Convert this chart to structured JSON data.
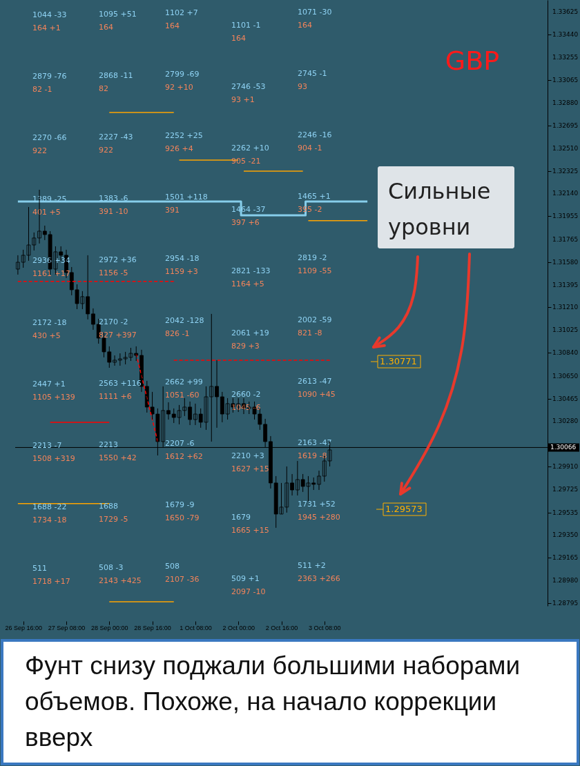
{
  "chart_data": {
    "type": "candlestick",
    "title": "GBP",
    "categories": [
      null,
      "26 Sep 16:00",
      null,
      null,
      null,
      null,
      null,
      null,
      null,
      "27 Sep 08:00",
      null,
      null,
      null,
      null,
      null,
      null,
      null,
      "28 Sep 00:00",
      null,
      null,
      null,
      null,
      null,
      null,
      null,
      "28 Sep 16:00",
      null,
      null,
      null,
      null,
      null,
      null,
      null,
      "1 Oct 08:00",
      null,
      null,
      null,
      null,
      null,
      null,
      null,
      "2 Oct 00:00",
      null,
      null,
      null,
      null,
      null,
      null,
      null,
      "2 Oct 16:00",
      null,
      null,
      null,
      null,
      null,
      null,
      null,
      "3 Oct 08:00",
      null,
      null,
      null,
      null,
      null,
      null,
      null,
      null,
      null,
      null,
      null,
      null,
      null,
      null,
      null,
      null,
      null,
      null,
      null,
      null,
      null,
      null,
      null,
      null,
      null,
      null,
      null,
      null,
      null,
      null,
      null,
      null,
      null,
      null,
      null,
      null,
      null,
      null,
      null,
      null,
      null
    ],
    "ylim": [
      1.28772,
      1.33721
    ],
    "yticks": [
      1.33625,
      {
        "value": 1.3344,
        "label": "1.33440"
      },
      1.33255,
      1.33065,
      {
        "value": 1.3288,
        "label": "1.32880"
      },
      1.32695,
      {
        "value": 1.3251,
        "label": "1.32510"
      },
      1.32325,
      {
        "value": 1.3214,
        "label": "1.32140"
      },
      1.31955,
      1.31765,
      {
        "value": 1.3158,
        "label": "1.31580"
      },
      1.31395,
      {
        "value": 1.3121,
        "label": "1.31210"
      },
      1.31025,
      {
        "value": 1.3084,
        "label": "1.30840"
      },
      {
        "value": 1.3065,
        "label": "1.30650"
      },
      1.30465,
      {
        "value": 1.3028,
        "label": "1.30280"
      },
      {
        "value": 1.2991,
        "label": "1.29910"
      },
      1.29725,
      1.29535,
      {
        "value": 1.2935,
        "label": "1.29350"
      },
      1.29165,
      {
        "value": 1.2898,
        "label": "1.28980"
      },
      1.28795
    ],
    "grid": false,
    "ohlc": [
      [
        1.31523,
        1.31636,
        1.31478,
        1.31579
      ],
      [
        1.31579,
        1.31681,
        1.31534,
        1.31636
      ],
      [
        1.31636,
        1.3203,
        1.31591,
        1.3172
      ],
      [
        1.3172,
        1.31822,
        1.31675,
        1.31777
      ],
      [
        1.31777,
        1.32171,
        1.31732,
        1.31833
      ],
      [
        1.31833,
        1.31878,
        1.3176,
        1.31805
      ],
      [
        1.31805,
        1.31833,
        1.31478,
        1.31523
      ],
      [
        1.31523,
        1.31709,
        1.31478,
        1.31664
      ],
      [
        1.31664,
        1.31709,
        1.31591,
        1.31636
      ],
      [
        1.31636,
        1.31681,
        1.3145,
        1.31495
      ],
      [
        1.31495,
        1.3154,
        1.31309,
        1.31354
      ],
      [
        1.31354,
        1.31399,
        1.31196,
        1.31241
      ],
      [
        1.31241,
        1.31343,
        1.31196,
        1.31298
      ],
      [
        1.31298,
        1.31636,
        1.31112,
        1.31157
      ],
      [
        1.31157,
        1.31202,
        1.31027,
        1.31072
      ],
      [
        1.31072,
        1.31117,
        1.30914,
        1.30959
      ],
      [
        1.30959,
        1.31004,
        1.30802,
        1.30847
      ],
      [
        1.30847,
        1.30892,
        1.30717,
        1.30762
      ],
      [
        1.30762,
        1.30818,
        1.30734,
        1.30779
      ],
      [
        1.30779,
        1.30835,
        1.30734,
        1.3079
      ],
      [
        1.3079,
        1.30847,
        1.30745,
        1.30802
      ],
      [
        1.30802,
        1.3088,
        1.30773,
        1.30835
      ],
      [
        1.30835,
        1.30892,
        1.30773,
        1.30818
      ],
      [
        1.30818,
        1.30864,
        1.3052,
        1.30565
      ],
      [
        1.30565,
        1.3061,
        1.30351,
        1.30396
      ],
      [
        1.30396,
        1.3052,
        1.30294,
        1.30339
      ],
      [
        1.30339,
        1.30385,
        1.30001,
        1.30114
      ],
      [
        1.30114,
        1.30565,
        1.30069,
        1.30368
      ],
      [
        1.30368,
        1.30435,
        1.30294,
        1.30339
      ],
      [
        1.30339,
        1.30385,
        1.30266,
        1.30311
      ],
      [
        1.30311,
        1.30413,
        1.30255,
        1.30368
      ],
      [
        1.30368,
        1.30469,
        1.30323,
        1.30396
      ],
      [
        1.30396,
        1.30441,
        1.30249,
        1.30294
      ],
      [
        1.30294,
        1.30424,
        1.30249,
        1.30339
      ],
      [
        1.30339,
        1.30385,
        1.30227,
        1.30272
      ],
      [
        1.30272,
        1.30565,
        1.3021,
        1.3048
      ],
      [
        1.3048,
        1.31157,
        1.30114,
        1.30565
      ],
      [
        1.30565,
        1.30779,
        1.30227,
        1.3048
      ],
      [
        1.3048,
        1.3052,
        1.30272,
        1.30339
      ],
      [
        1.30339,
        1.30469,
        1.30294,
        1.30424
      ],
      [
        1.30424,
        1.30469,
        1.30351,
        1.30396
      ],
      [
        1.30396,
        1.30469,
        1.30356,
        1.30424
      ],
      [
        1.30424,
        1.30469,
        1.30339,
        1.30385
      ],
      [
        1.30385,
        1.30441,
        1.30339,
        1.30396
      ],
      [
        1.30396,
        1.30441,
        1.30294,
        1.30339
      ],
      [
        1.30339,
        1.30385,
        1.3021,
        1.30255
      ],
      [
        1.30255,
        1.303,
        1.30069,
        1.30114
      ],
      [
        1.30114,
        1.30159,
        1.29731,
        1.29776
      ],
      [
        1.29776,
        1.29832,
        1.2941,
        1.29522
      ],
      [
        1.29522,
        1.29776,
        1.29522,
        1.29579
      ],
      [
        1.29579,
        1.29911,
        1.29534,
        1.29776
      ],
      [
        1.29776,
        1.29849,
        1.29674,
        1.29719
      ],
      [
        1.29719,
        1.29956,
        1.29674,
        1.29804
      ],
      [
        1.29804,
        1.29849,
        1.29703,
        1.29748
      ],
      [
        1.29748,
        1.29832,
        1.29624,
        1.29776
      ],
      [
        1.29776,
        1.29821,
        1.29719,
        1.29765
      ],
      [
        1.29765,
        1.29877,
        1.29719,
        1.29832
      ],
      [
        1.29832,
        1.30001,
        1.29787,
        1.29956
      ],
      [
        1.29956,
        1.30114,
        1.29911,
        1.30046
      ],
      null,
      null,
      null,
      null,
      null,
      null,
      null,
      null,
      null,
      null,
      null,
      null,
      null,
      null,
      null,
      null,
      null,
      null,
      null,
      null,
      null,
      null,
      null,
      null,
      null,
      null,
      null,
      null,
      null,
      null,
      null,
      null,
      null,
      null,
      null,
      null,
      null,
      null,
      null,
      null
    ],
    "series": [
      {
        "type": "step",
        "color": "#87ceeb",
        "values": [
          1.32075,
          1.32075,
          1.32075,
          1.32075,
          1.32075,
          1.32075,
          1.32075,
          1.32075,
          1.32075,
          1.32075,
          1.32075,
          1.32075,
          1.32075,
          1.32075,
          1.32075,
          1.32075,
          1.32075,
          1.32075,
          1.32075,
          1.32075,
          1.32075,
          1.32075,
          1.32075,
          1.32075,
          1.32075,
          1.32075,
          1.32075,
          1.32075,
          1.32075,
          1.32075,
          1.32075,
          1.32075,
          1.32075,
          1.32075,
          1.32075,
          1.32075,
          1.32075,
          1.32075,
          1.32075,
          1.32075,
          1.32075,
          1.32075,
          1.31963,
          1.31963,
          1.31963,
          1.31963,
          1.31963,
          1.31963,
          1.31963,
          1.31963,
          1.31963,
          1.31963,
          1.31963,
          1.31963,
          1.32075,
          1.32075,
          1.32075,
          1.32075,
          1.32075,
          1.32075,
          1.32075,
          1.32075,
          1.32075,
          1.32075,
          1.32075,
          1.32075,
          null,
          null,
          null,
          null,
          null,
          null,
          null,
          null,
          null,
          null,
          null,
          null,
          null,
          null,
          null,
          null,
          null,
          null,
          null,
          null,
          null,
          null,
          null,
          null,
          null,
          null,
          null,
          null,
          null,
          null,
          null,
          null,
          null
        ]
      },
      {
        "type": "line",
        "color": "#ff0000",
        "line_style": "dashed",
        "values": [
          1.31422,
          1.31422,
          1.31422,
          1.31422,
          1.31422,
          1.31422,
          1.31422,
          1.31422,
          1.31422,
          1.31422,
          1.31422,
          1.31422,
          1.31422,
          1.31422,
          1.31422,
          1.31422,
          1.31422,
          1.31422,
          1.31422,
          1.31422,
          1.31422,
          1.31422,
          1.31422,
          1.31422,
          1.31422,
          1.31422,
          1.31422,
          1.31422,
          1.31422,
          1.31422,
          null,
          null,
          null,
          null,
          null,
          null,
          null,
          null,
          null,
          null,
          null,
          null,
          null,
          null,
          null,
          null,
          null,
          null,
          null,
          null,
          null,
          null,
          null,
          null,
          null,
          null,
          null,
          null,
          null,
          null,
          null,
          null,
          null,
          null,
          null,
          null,
          null,
          null,
          null,
          null,
          null,
          null,
          null,
          null,
          null,
          null,
          null,
          null,
          null,
          null,
          null,
          null,
          null,
          null,
          null,
          null,
          null,
          null,
          null,
          null,
          null,
          null,
          null,
          null,
          null,
          null,
          null,
          null,
          null
        ]
      },
      {
        "type": "line",
        "color": "#ff0000",
        "line_style": "dashed",
        "values": [
          null,
          null,
          null,
          null,
          null,
          null,
          null,
          null,
          null,
          null,
          null,
          null,
          null,
          null,
          null,
          null,
          null,
          null,
          null,
          null,
          null,
          null,
          null,
          null,
          null,
          null,
          null,
          null,
          null,
          1.30779,
          1.30779,
          1.30779,
          1.30779,
          1.30779,
          1.30779,
          1.30779,
          1.30779,
          1.30779,
          1.30779,
          1.30779,
          1.30779,
          1.30779,
          1.30779,
          1.30779,
          1.30779,
          1.30779,
          1.30779,
          1.30779,
          1.30779,
          1.30779,
          1.30779,
          1.30779,
          1.30779,
          1.30779,
          1.30779,
          1.30779,
          1.30779,
          1.30779,
          1.30779,
          null,
          null,
          null,
          null,
          null,
          null,
          null,
          null,
          null,
          null,
          null,
          null,
          null,
          null,
          null,
          null,
          null,
          null,
          null,
          null,
          null,
          null,
          null,
          null,
          null,
          null,
          null,
          null,
          null,
          null,
          null,
          null,
          null,
          null,
          null,
          null,
          null,
          null,
          null,
          null
        ]
      },
      {
        "type": "line",
        "color": "#ff0000",
        "line_style": "dashed",
        "values": [
          null,
          null,
          null,
          null,
          null,
          null,
          null,
          null,
          null,
          null,
          null,
          null,
          null,
          null,
          null,
          null,
          null,
          null,
          null,
          null,
          null,
          null,
          1.3083,
          1.30651,
          1.30472,
          1.30293,
          1.30114,
          null,
          null,
          null,
          null,
          null,
          null,
          null,
          null,
          null,
          null,
          null,
          null,
          null,
          null,
          null,
          null,
          null,
          null,
          null,
          null,
          null,
          null,
          null,
          null,
          null,
          null,
          null,
          null,
          null,
          null,
          null,
          null,
          null,
          null,
          null,
          null,
          null,
          null,
          null,
          null,
          null,
          null,
          null,
          null,
          null,
          null,
          null,
          null,
          null,
          null,
          null,
          null,
          null,
          null,
          null,
          null,
          null,
          null,
          null,
          null,
          null,
          null,
          null,
          null,
          null,
          null,
          null,
          null,
          null,
          null,
          null,
          null
        ]
      },
      {
        "type": "line",
        "color": "#ffa500",
        "values": [
          null,
          null,
          null,
          null,
          null,
          null,
          null,
          null,
          null,
          null,
          null,
          null,
          null,
          null,
          null,
          null,
          null,
          1.32802,
          1.32802,
          1.32802,
          1.32802,
          1.32802,
          1.32802,
          1.32802,
          1.32802,
          1.32802,
          1.32802,
          1.32802,
          1.32802,
          1.32802,
          null,
          null,
          null,
          null,
          null,
          null,
          null,
          null,
          null,
          null,
          null,
          null,
          null,
          null,
          null,
          null,
          null,
          null,
          null,
          null,
          null,
          null,
          null,
          null,
          null,
          null,
          null,
          null,
          null,
          null,
          null,
          null,
          null,
          null,
          null,
          null,
          null,
          null,
          null,
          null,
          null,
          null,
          null,
          null,
          null,
          null,
          null,
          null,
          null,
          null,
          null,
          null,
          null,
          null,
          null,
          null,
          null,
          null,
          null,
          null,
          null,
          null,
          null,
          null,
          null,
          null,
          null,
          null,
          null
        ]
      },
      {
        "type": "line",
        "color": "#ffa500",
        "values": [
          null,
          null,
          null,
          null,
          null,
          null,
          null,
          null,
          null,
          null,
          null,
          null,
          null,
          null,
          null,
          null,
          null,
          null,
          null,
          null,
          null,
          null,
          null,
          null,
          null,
          null,
          null,
          null,
          null,
          null,
          1.32413,
          1.32413,
          1.32413,
          1.32413,
          1.32413,
          1.32413,
          1.32413,
          1.32413,
          1.32413,
          1.32413,
          1.32413,
          1.32413,
          null,
          null,
          null,
          null,
          null,
          null,
          null,
          null,
          null,
          null,
          null,
          null,
          null,
          null,
          null,
          null,
          null,
          null,
          null,
          null,
          null,
          null,
          null,
          null,
          null,
          null,
          null,
          null,
          null,
          null,
          null,
          null,
          null,
          null,
          null,
          null,
          null,
          null,
          null,
          null,
          null,
          null,
          null,
          null,
          null,
          null,
          null,
          null,
          null,
          null,
          null,
          null,
          null,
          null,
          null,
          null,
          null
        ]
      },
      {
        "type": "line",
        "color": "#ffa500",
        "values": [
          null,
          null,
          null,
          null,
          null,
          null,
          null,
          null,
          null,
          null,
          null,
          null,
          null,
          null,
          null,
          null,
          null,
          null,
          null,
          null,
          null,
          null,
          null,
          null,
          null,
          null,
          null,
          null,
          null,
          null,
          null,
          null,
          null,
          null,
          null,
          null,
          null,
          null,
          null,
          null,
          null,
          null,
          1.32323,
          1.32323,
          1.32323,
          1.32323,
          1.32323,
          1.32323,
          1.32323,
          1.32323,
          1.32323,
          1.32323,
          1.32323,
          1.32323,
          null,
          null,
          null,
          null,
          null,
          null,
          null,
          null,
          null,
          null,
          null,
          null,
          null,
          null,
          null,
          null,
          null,
          null,
          null,
          null,
          null,
          null,
          null,
          null,
          null,
          null,
          null,
          null,
          null,
          null,
          null,
          null,
          null,
          null,
          null,
          null,
          null,
          null,
          null,
          null,
          null,
          null,
          null,
          null,
          null
        ]
      },
      {
        "type": "line",
        "color": "#ffa500",
        "values": [
          null,
          null,
          null,
          null,
          null,
          null,
          null,
          null,
          null,
          null,
          null,
          null,
          null,
          null,
          null,
          null,
          null,
          null,
          null,
          null,
          null,
          null,
          null,
          null,
          null,
          null,
          null,
          null,
          null,
          null,
          null,
          null,
          null,
          null,
          null,
          null,
          null,
          null,
          null,
          null,
          null,
          null,
          null,
          null,
          null,
          null,
          null,
          null,
          null,
          null,
          null,
          null,
          null,
          null,
          1.31918,
          1.31918,
          1.31918,
          1.31918,
          1.31918,
          1.31918,
          1.31918,
          1.31918,
          1.31918,
          1.31918,
          1.31918,
          1.31918,
          null,
          null,
          null,
          null,
          null,
          null,
          null,
          null,
          null,
          null,
          null,
          null,
          null,
          null,
          null,
          null,
          null,
          null,
          null,
          null,
          null,
          null,
          null,
          null,
          null,
          null,
          null,
          null,
          null,
          null,
          null,
          null,
          null
        ]
      },
      {
        "type": "line",
        "color": "#ffa500",
        "values": [
          1.29607,
          1.29607,
          1.29607,
          1.29607,
          1.29607,
          1.29607,
          1.29607,
          1.29607,
          1.29607,
          1.29607,
          1.29607,
          1.29607,
          1.29607,
          1.29607,
          1.29607,
          1.29607,
          1.29607,
          1.29607,
          null,
          null,
          null,
          null,
          null,
          null,
          null,
          null,
          null,
          null,
          null,
          null,
          null,
          null,
          null,
          null,
          null,
          null,
          null,
          null,
          null,
          null,
          null,
          null,
          null,
          null,
          null,
          null,
          null,
          null,
          null,
          null,
          null,
          null,
          null,
          null,
          null,
          null,
          null,
          null,
          null,
          null,
          null,
          null,
          null,
          null,
          null,
          null,
          null,
          null,
          null,
          null,
          null,
          null,
          null,
          null,
          null,
          null,
          null,
          null,
          null,
          null,
          null,
          null,
          null,
          null,
          null,
          null,
          null,
          null,
          null,
          null,
          null,
          null,
          null,
          null,
          null,
          null,
          null,
          null,
          null
        ]
      },
      {
        "type": "line",
        "color": "#ffa500",
        "values": [
          null,
          null,
          null,
          null,
          null,
          null,
          null,
          null,
          null,
          null,
          null,
          null,
          null,
          null,
          null,
          null,
          null,
          1.28806,
          1.28806,
          1.28806,
          1.28806,
          1.28806,
          1.28806,
          1.28806,
          1.28806,
          1.28806,
          1.28806,
          1.28806,
          1.28806,
          1.28806,
          null,
          null,
          null,
          null,
          null,
          null,
          null,
          null,
          null,
          null,
          null,
          null,
          null,
          null,
          null,
          null,
          null,
          null,
          null,
          null,
          null,
          null,
          null,
          null,
          null,
          null,
          null,
          null,
          null,
          null,
          null,
          null,
          null,
          null,
          null,
          null,
          null,
          null,
          null,
          null,
          null,
          null,
          null,
          null,
          null,
          null,
          null,
          null,
          null,
          null,
          null,
          null,
          null,
          null,
          null,
          null,
          null,
          null,
          null,
          null,
          null,
          null,
          null,
          null,
          null,
          null,
          null,
          null,
          null
        ]
      },
      {
        "type": "line",
        "color": "#ff0000",
        "values": [
          null,
          null,
          null,
          null,
          null,
          null,
          1.30272,
          1.30272,
          1.30272,
          1.30272,
          1.30272,
          1.30272,
          1.30272,
          1.30272,
          1.30272,
          1.30272,
          1.30272,
          1.30272,
          null,
          null,
          null,
          null,
          null,
          null,
          null,
          null,
          null,
          null,
          null,
          null,
          null,
          null,
          null,
          null,
          null,
          null,
          null,
          null,
          null,
          null,
          null,
          null,
          null,
          null,
          null,
          null,
          null,
          null,
          null,
          null,
          null,
          null,
          null,
          null,
          null,
          null,
          null,
          null,
          null,
          null,
          null,
          null,
          null,
          null,
          null,
          null,
          null,
          null,
          null,
          null,
          null,
          null,
          null,
          null,
          null,
          null,
          null,
          null,
          null,
          null,
          null,
          null,
          null,
          null,
          null,
          null,
          null,
          null,
          null,
          null,
          null,
          null,
          null,
          null,
          null,
          null,
          null,
          null,
          null
        ]
      }
    ],
    "ref_lines": [
      {
        "axis": "y",
        "value": 1.30066,
        "label": "1.30066",
        "color": "#000000"
      }
    ],
    "annotations": [
      "1044 -33",
      "164 +1",
      "1095 +51",
      "164",
      "1102 +7",
      "164",
      "1101 -1",
      "164",
      "1071 -30",
      "164",
      "2879 -76",
      "82 -1",
      "2868 -11",
      "82",
      "2799 -69",
      "92 +10",
      "2746 -53",
      "93 +1",
      "2745 -1",
      "93",
      "2270 -66",
      "922",
      "2227 -43",
      "922",
      "2252 +25",
      "926 +4",
      "2262 +10",
      "905 -21",
      "2246 -16",
      "904 -1",
      "1389 -25",
      "401 +5",
      "1383 -6",
      "391 -10",
      "1501 +118",
      "391",
      "1464 -37",
      "397 +6",
      "1465 +1",
      "395 -2",
      "2936 +34",
      "1161 +17",
      "2972 +36",
      "1156 -5",
      "2954 -18",
      "1159 +3",
      "2821 -133",
      "1164 +5",
      "2819 -2",
      "1109 -55",
      "2172 -18",
      "430 +5",
      "2170 -2",
      "827 +397",
      "2042 -128",
      "826 -1",
      "2061 +19",
      "829 +3",
      "2002 -59",
      "821 -8",
      "2447 +1",
      "1105 +139",
      "2563 +116",
      "1111 +6",
      "2662 +99",
      "1051 -60",
      "2660 -2",
      "1045 -6",
      "2613 -47",
      "1090 +45",
      "2213 -7",
      "1508 +319",
      "2213",
      "1550 +42",
      "2207 -6",
      "1612 +62",
      "2210 +3",
      "1627 +15",
      "2163 -47",
      "1619 -8",
      "1688 -22",
      "1734 -18",
      "1688",
      "1729 -5",
      "1679 -9",
      "1650 -79",
      "1679",
      "1665 +15",
      "1731 +52",
      "1945 +280",
      "511",
      "1718 +17",
      "508 -3",
      "2143 +425",
      "508",
      "2107 -36",
      "509 +1",
      "2097 -10",
      "511 +2",
      "2363 +266",
      "1.30771",
      "1.29573",
      "Сильные уровни",
      "Фунт снизу поджали большими наборами объемов. Похоже, на начало коррекции вверх"
    ]
  }
}
